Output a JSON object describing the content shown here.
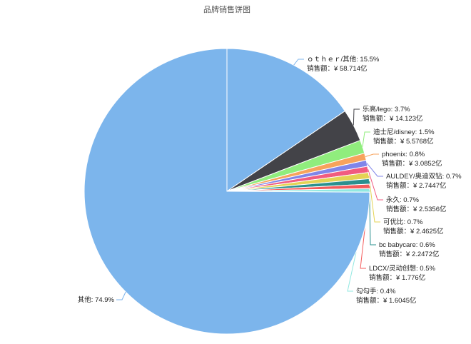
{
  "chart_data": {
    "type": "pie",
    "title": "品牌销售饼图",
    "categories": [
      "ｏｔｈｅｒ/其他",
      "乐高/lego",
      "迪士尼/disney",
      "phoenix",
      "AULDEY/奥迪双钻",
      "永久",
      "可优比",
      "bc babycare",
      "LDCX/灵动创想",
      "勾勾手",
      "其他"
    ],
    "values": [
      15.5,
      3.7,
      1.5,
      0.8,
      0.7,
      0.7,
      0.7,
      0.6,
      0.5,
      0.4,
      74.9
    ],
    "value_labels": [
      "15.5%",
      "3.7%",
      "1.5%",
      "0.8%",
      "0.7%",
      "0.7%",
      "0.7%",
      "0.6%",
      "0.5%",
      "0.4%",
      "74.9%"
    ],
    "label_separator": ": ",
    "sales_prefix": "销售额：",
    "sales_labels": [
      "¥ 58.714亿",
      "¥ 14.123亿",
      "¥ 5.5768亿",
      "¥ 3.0852亿",
      "¥ 2.7447亿",
      "¥ 2.5356亿",
      "¥ 2.4625亿",
      "¥ 2.2472亿",
      "¥ 1.776亿",
      "¥ 1.6045亿",
      null
    ],
    "colors": [
      "#7cb5ec",
      "#434348",
      "#90ed7d",
      "#f7a35c",
      "#8085e9",
      "#f15c80",
      "#e4d354",
      "#2b908f",
      "#f45b5b",
      "#91e8e1",
      "#7cb5ec"
    ]
  }
}
